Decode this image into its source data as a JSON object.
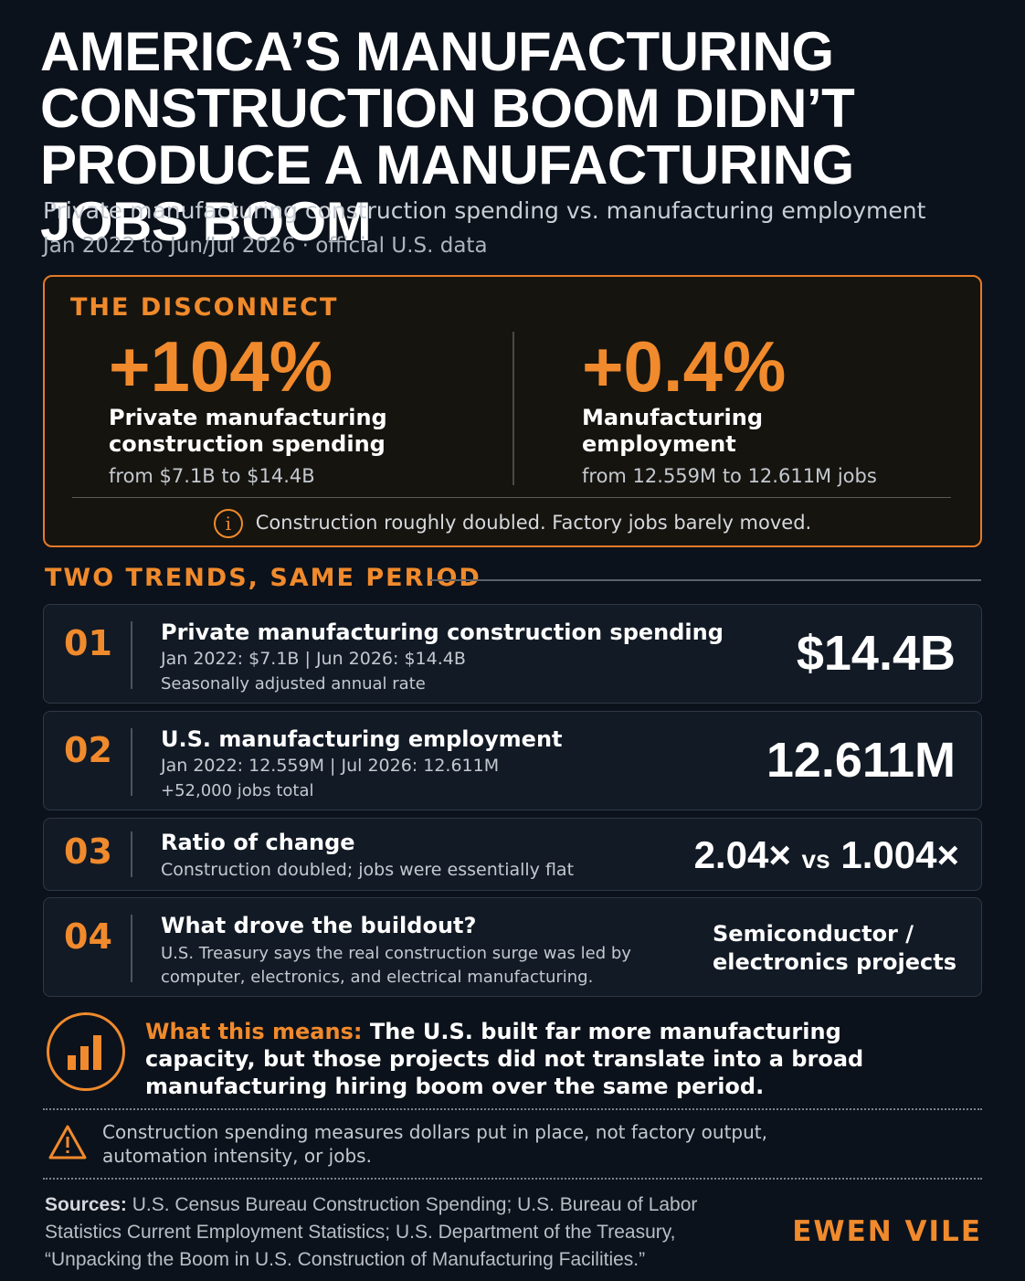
{
  "header": {
    "title_lines": [
      "AMERICA’S MANUFACTURING",
      "CONSTRUCTION BOOM DIDN’T",
      "PRODUCE A MANUFACTURING JOBS BOOM"
    ],
    "subtitle": "Private manufacturing construction spending vs. manufacturing employment",
    "dateline": "Jan 2022 to Jun/Jul 2026 · official U.S. data"
  },
  "disconnect": {
    "label": "THE DISCONNECT",
    "left": {
      "value": "+104%",
      "label": "Private manufacturing construction spending",
      "detail": "from $7.1B to $14.4B"
    },
    "right": {
      "value": "+0.4%",
      "label": "Manufacturing employment",
      "detail": "from 12.559M to 12.611M jobs"
    },
    "note_icon": "info-icon",
    "note": "Construction roughly doubled. Factory jobs barely moved."
  },
  "trends": {
    "heading": "TWO TRENDS, SAME PERIOD",
    "rows": [
      {
        "num": "01",
        "title": "Private manufacturing construction spending",
        "line1": "Jan 2022: $7.1B  |  Jun 2026: $14.4B",
        "line2": "Seasonally adjusted annual rate",
        "value": "$14.4B"
      },
      {
        "num": "02",
        "title": "U.S. manufacturing employment",
        "line1": "Jan 2022: 12.559M  |  Jul 2026: 12.611M",
        "line2": "+52,000 jobs total",
        "value": "12.611M"
      },
      {
        "num": "03",
        "title": "Ratio of change",
        "line1": "Construction doubled; jobs were essentially flat",
        "value_a": "2.04×",
        "value_vs": "vs",
        "value_b": "1.004×"
      },
      {
        "num": "04",
        "title": "What drove the buildout?",
        "line1": "U.S. Treasury says the real construction surge was led by",
        "line2": "computer, electronics, and electrical manufacturing.",
        "value_line1": "Semiconductor /",
        "value_line2": "electronics projects"
      }
    ]
  },
  "takeaway": {
    "icon": "bar-chart-icon",
    "lead": "What this means:",
    "text": " The U.S. built far more manufacturing capacity, but those projects did not translate into a broad manufacturing hiring boom over the same period."
  },
  "caveat": {
    "icon": "warning-icon",
    "text": "Construction spending measures dollars put in place, not factory output, automation intensity, or jobs."
  },
  "sources": {
    "label": "Sources:",
    "text": " U.S. Census Bureau Construction Spending; U.S. Bureau of Labor Statistics Current Employment Statistics; U.S. Department of the Treasury, “Unpacking the Boom in U.S. Construction of Manufacturing Facilities.”"
  },
  "brand": "EWEN VILE",
  "colors": {
    "accent": "#f08a2c",
    "background": "#0c121b",
    "card": "#121a25"
  }
}
